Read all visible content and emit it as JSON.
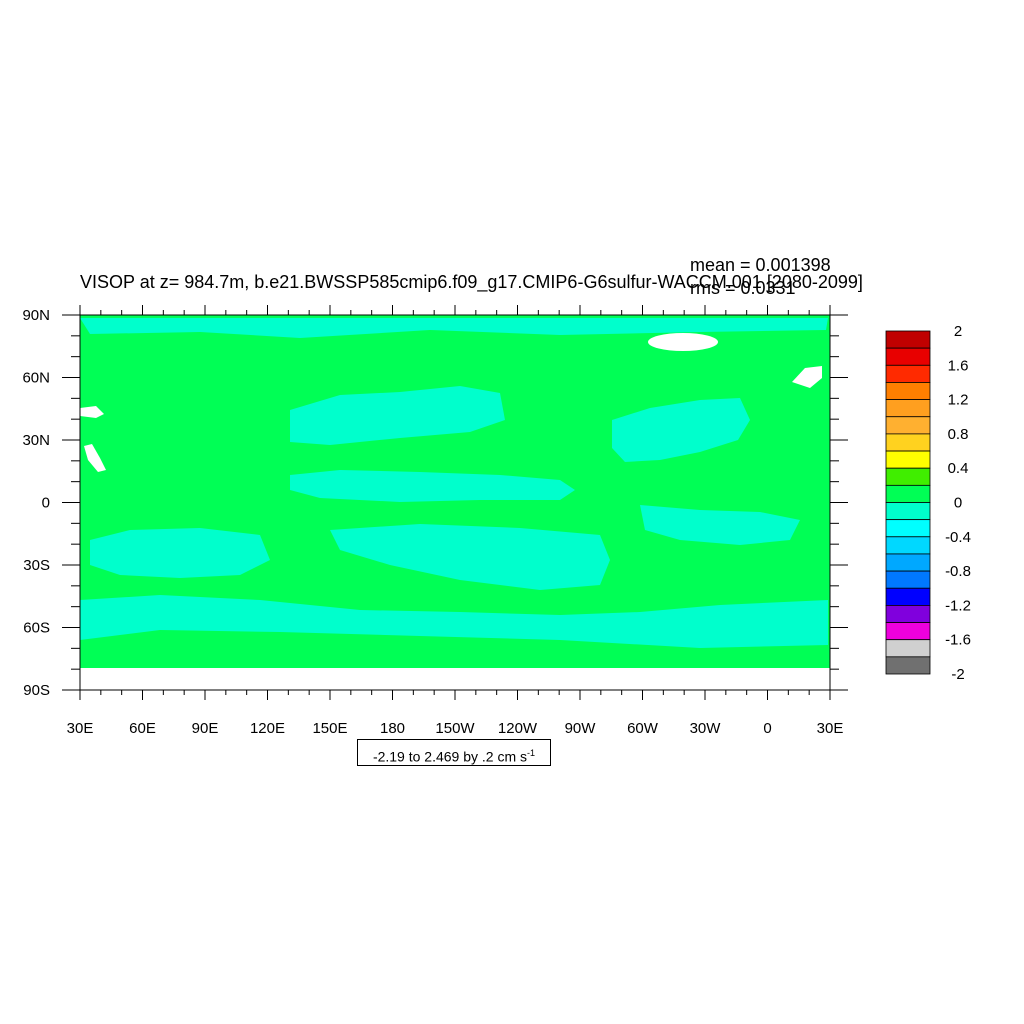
{
  "stats": {
    "mean": "mean = 0.001398",
    "rms": "rms = 0.0331"
  },
  "title": "VISOP at z= 984.7m, b.e21.BWSSP585cmip6.f09_g17.CMIP6-G6sulfur-WACCM.001 [2080-2099]",
  "axes": {
    "lat_labels": [
      "90N",
      "60N",
      "30N",
      "0",
      "30S",
      "60S",
      "90S"
    ],
    "lon_labels": [
      "30E",
      "60E",
      "90E",
      "120E",
      "150E",
      "180",
      "150W",
      "120W",
      "90W",
      "60W",
      "30W",
      "0",
      "30E"
    ]
  },
  "contour_info": {
    "text": "-2.19 to 2.469 by .2 cm s",
    "superscript": "-1"
  },
  "colorbar": {
    "labels": [
      "2",
      "1.6",
      "1.2",
      "0.8",
      "0.4",
      "0",
      "-0.4",
      "-0.8",
      "-1.2",
      "-1.6",
      "-2"
    ],
    "colors": [
      "#c00000",
      "#e80000",
      "#ff2a00",
      "#ff7f00",
      "#ff9f1f",
      "#ffb030",
      "#ffd21f",
      "#ffff00",
      "#40ee00",
      "#00ff55",
      "#00ffcc",
      "#00ffff",
      "#00d8ff",
      "#00a8ff",
      "#0078ff",
      "#0000ff",
      "#8000dd",
      "#ee00dd",
      "#d0d0d0",
      "#707070"
    ]
  },
  "map_colors": {
    "ocean_base": "#00ff55",
    "band": "#00ffcc",
    "land_white": "#ffffff"
  }
}
